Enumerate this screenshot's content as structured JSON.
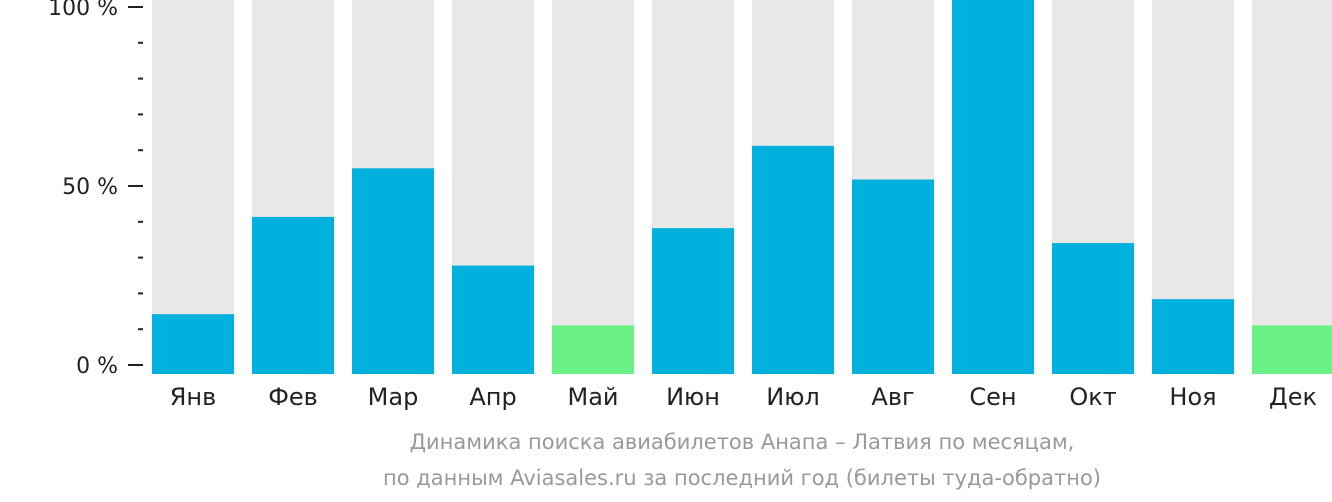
{
  "chart_data": {
    "type": "bar",
    "categories": [
      "Янв",
      "Фев",
      "Мар",
      "Апр",
      "Май",
      "Июн",
      "Июл",
      "Авг",
      "Сен",
      "Окт",
      "Ноя",
      "Дек"
    ],
    "values": [
      16,
      42,
      55,
      29,
      13,
      39,
      61,
      52,
      100,
      35,
      20,
      13
    ],
    "highlighted": [
      false,
      false,
      false,
      false,
      true,
      false,
      false,
      false,
      false,
      false,
      false,
      true
    ],
    "ylim": [
      0,
      100
    ],
    "y_ticks": [
      {
        "value": 0,
        "label": "0 %"
      },
      {
        "value": 50,
        "label": "50 %"
      },
      {
        "value": 100,
        "label": "100 %"
      }
    ],
    "minor_tick_step": 10,
    "colors": {
      "bar": "#00b0dd",
      "bar_highlight": "#6cf187",
      "track": "#e8e8e8",
      "axis": "#222222"
    },
    "caption_line1": "Динамика поиска авиабилетов Анапа – Латвия по месяцам,",
    "caption_line2": "по данным Aviasales.ru за последний год (билеты туда-обратно)"
  }
}
